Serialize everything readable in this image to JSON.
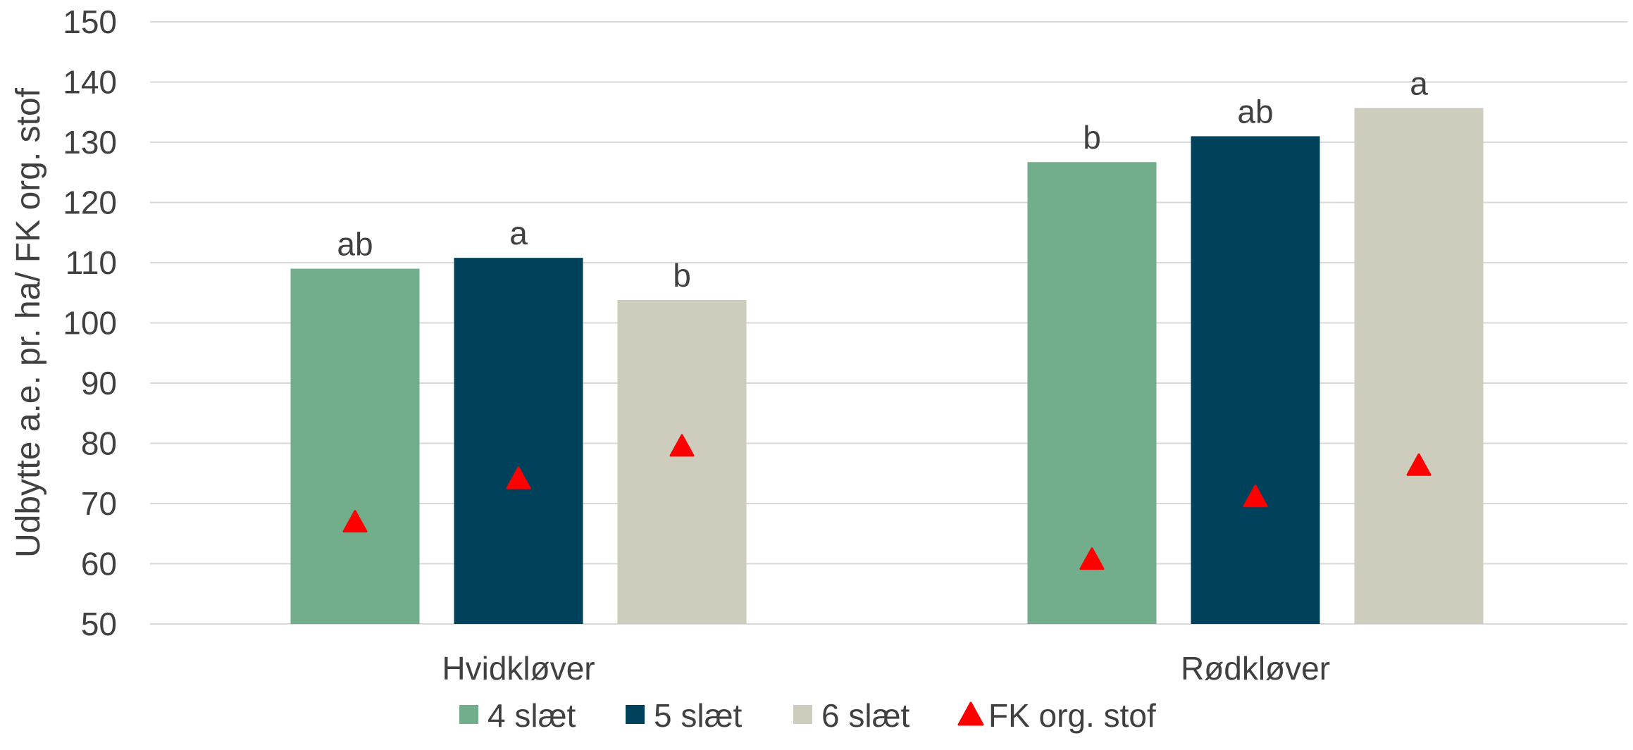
{
  "chart_data": {
    "type": "bar",
    "title": "",
    "xlabel": "",
    "ylabel": "Udbytte a.e. pr. ha/ FK org. stof",
    "ylim": [
      50,
      150
    ],
    "yticks": [
      50,
      60,
      70,
      80,
      90,
      100,
      110,
      120,
      130,
      140,
      150
    ],
    "grid": true,
    "legend_position": "bottom",
    "categories": [
      "Hvidkløver",
      "Rødkløver"
    ],
    "series": [
      {
        "name": "4 slæt",
        "type": "bar",
        "color": "#72ae8b",
        "values": [
          109,
          126.7
        ],
        "labels": [
          "ab",
          "b"
        ]
      },
      {
        "name": "5 slæt",
        "type": "bar",
        "color": "#00415b",
        "values": [
          110.8,
          131
        ],
        "labels": [
          "a",
          "ab"
        ]
      },
      {
        "name": "6 slæt",
        "type": "bar",
        "color": "#ceccbc",
        "values": [
          103.8,
          135.7
        ],
        "labels": [
          "b",
          "a"
        ]
      },
      {
        "name": "FK org. stof",
        "type": "marker",
        "marker": "triangle",
        "color": "#ff0000",
        "values": [
          [
            67,
            74.2,
            79.6
          ],
          [
            60.8,
            71.2,
            76.4
          ]
        ]
      }
    ]
  }
}
